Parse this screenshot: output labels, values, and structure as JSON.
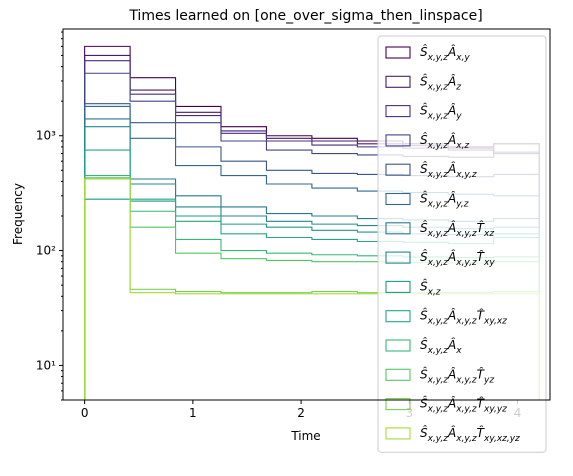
{
  "chart_data": {
    "type": "line",
    "title": "Times learned on [one_over_sigma_then_linspace]",
    "xlabel": "Time",
    "ylabel": "Frequency",
    "xlim": [
      -0.2,
      4.3
    ],
    "ylim": [
      5,
      8500
    ],
    "yscale": "log",
    "grid": false,
    "legend_position": "top-right",
    "x_ticks": [
      0,
      1,
      2,
      3,
      4
    ],
    "x_tick_labels": [
      "0",
      "1",
      "2",
      "3",
      "4"
    ],
    "y_ticks": [
      10,
      100,
      1000
    ],
    "y_tick_labels": [
      "10¹",
      "10²",
      "10³"
    ],
    "bin_edges": [
      0,
      0.42,
      0.84,
      1.26,
      1.68,
      2.1,
      2.52,
      2.94,
      3.36,
      3.78,
      4.2
    ],
    "series": [
      {
        "name": "Ŝ_{x,y,z}Â_{x,y}",
        "color": "#440154",
        "values": [
          6000,
          3200,
          1800,
          1200,
          1000,
          950,
          900,
          850,
          800,
          850
        ]
      },
      {
        "name": "Ŝ_{x,y,z}Â_{z}",
        "color": "#481a6c",
        "values": [
          5000,
          2500,
          1600,
          1100,
          950,
          900,
          850,
          820,
          780,
          700
        ]
      },
      {
        "name": "Ŝ_{x,y,z}Â_{y}",
        "color": "#472f7d",
        "values": [
          4500,
          2300,
          1500,
          1050,
          900,
          830,
          800,
          780,
          750,
          720
        ]
      },
      {
        "name": "Ŝ_{x,y,z}Â_{x,z}",
        "color": "#414487",
        "values": [
          3500,
          2000,
          1300,
          900,
          750,
          700,
          680,
          660,
          650,
          700
        ]
      },
      {
        "name": "Ŝ_{x,y,z}Â_{x,y,z}",
        "color": "#39568c",
        "values": [
          1900,
          1300,
          800,
          600,
          500,
          470,
          460,
          450,
          440,
          460
        ]
      },
      {
        "name": "Ŝ_{x,y,z}Â_{y,z}",
        "color": "#31688e",
        "values": [
          1800,
          950,
          550,
          450,
          380,
          350,
          330,
          320,
          310,
          300
        ]
      },
      {
        "name": "Ŝ_{x,y,z}Â_{x,y,z}T̂_{xz}",
        "color": "#2a788e",
        "values": [
          1400,
          420,
          300,
          240,
          210,
          200,
          190,
          185,
          180,
          190
        ]
      },
      {
        "name": "Ŝ_{x,y,z}Â_{x,y,z}T̂_{xy}",
        "color": "#23888e",
        "values": [
          1200,
          380,
          240,
          200,
          180,
          170,
          165,
          160,
          155,
          160
        ]
      },
      {
        "name": "Ŝ_{x,z}",
        "color": "#1f988b",
        "values": [
          280,
          270,
          200,
          170,
          160,
          150,
          145,
          140,
          138,
          140
        ]
      },
      {
        "name": "Ŝ_{x,y,z}Â_{x,y,z}T̂_{xy,xz}",
        "color": "#22a884",
        "values": [
          750,
          280,
          180,
          140,
          130,
          125,
          120,
          118,
          115,
          130
        ]
      },
      {
        "name": "Ŝ_{x,y,z}Â_{x}",
        "color": "#35b779",
        "values": [
          450,
          220,
          125,
          100,
          95,
          92,
          90,
          88,
          87,
          88
        ]
      },
      {
        "name": "Ŝ_{x,y,z}Â_{x,y,z}T̂_{yz}",
        "color": "#54c568",
        "values": [
          430,
          160,
          95,
          85,
          82,
          80,
          80,
          79,
          78,
          80
        ]
      },
      {
        "name": "Ŝ_{x,y,z}Â_{x,y,z}T̂_{xy,yz}",
        "color": "#7ad151",
        "values": [
          420,
          46,
          44,
          43,
          43,
          44,
          43,
          43,
          43,
          44
        ]
      },
      {
        "name": "Ŝ_{x,y,z}Â_{x,y,z}T̂_{xy,xz,yz}",
        "color": "#a5db36",
        "values": [
          420,
          43,
          42,
          42,
          42,
          42,
          42,
          42,
          42,
          42
        ]
      }
    ]
  }
}
